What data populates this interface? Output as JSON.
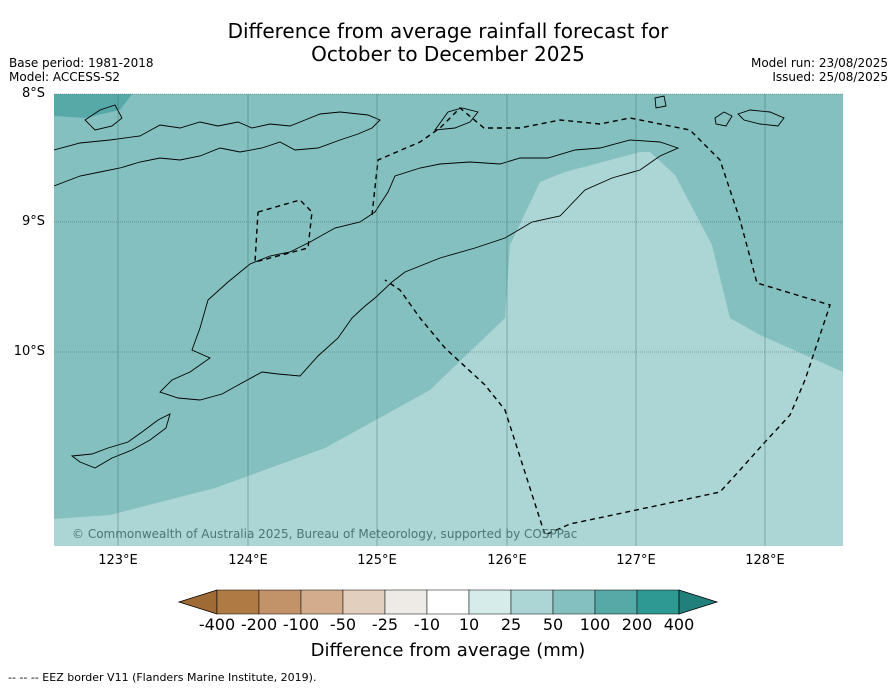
{
  "title_line1": "Difference from average rainfall forecast for",
  "title_line2": "October to December 2025",
  "meta": {
    "base_period": "Base period: 1981-2018",
    "model": "Model: ACCESS-S2",
    "model_run": "Model run: 23/08/2025",
    "issued": "Issued: 25/08/2025"
  },
  "axes": {
    "lat_labels": [
      "8°S",
      "9°S",
      "10°S"
    ],
    "lon_labels": [
      "123°E",
      "124°E",
      "125°E",
      "126°E",
      "127°E",
      "128°E"
    ]
  },
  "copyright": "© Commonwealth of Australia 2025, Bureau of Meteorology, supported by COSPPac",
  "colorbar": {
    "title": "Difference from average (mm)",
    "tick_labels": [
      "-400",
      "-200",
      "-100",
      "-50",
      "-25",
      "-10",
      "10",
      "25",
      "50",
      "100",
      "200",
      "400"
    ],
    "colors": [
      "#a06a35",
      "#b07a45",
      "#c29268",
      "#d2ac8c",
      "#e2cfbd",
      "#eeebe6",
      "#ffffff",
      "#d6ecea",
      "#acd6d5",
      "#84c0bf",
      "#57a9a8",
      "#2e9893",
      "#22807c"
    ]
  },
  "footnote": "--  --  -- EEZ border V11 (Flanders Marine Institute, 2019)."
}
